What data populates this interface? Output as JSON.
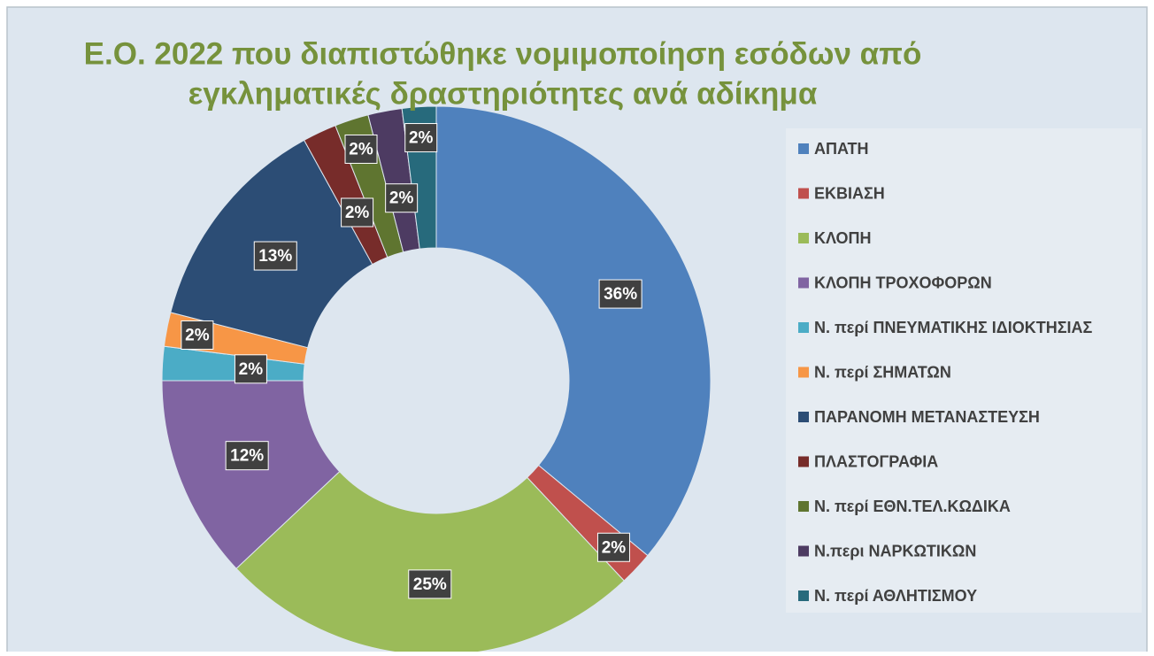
{
  "chart_data": {
    "type": "donut",
    "title": [
      "Ε.Ο. 2022 που διαπιστώθηκε νομιμοποίηση εσόδων από",
      "εγκληματικές δραστηριότητες ανά αδίκημα"
    ],
    "categories": [
      "ΑΠΑΤΗ",
      "ΕΚΒΙΑΣΗ",
      "ΚΛΟΠΗ",
      "ΚΛΟΠΗ ΤΡΟΧΟΦΟΡΩΝ",
      "Ν. περί ΠΝΕΥΜΑΤΙΚΗΣ ΙΔΙΟΚΤΗΣΙΑΣ",
      "Ν. περί ΣΗΜΑΤΩΝ",
      "ΠΑΡΑΝΟΜΗ ΜΕΤΑΝΑΣΤΕΥΣΗ",
      "ΠΛΑΣΤΟΓΡΑΦΙΑ",
      "Ν. περί ΕΘΝ.ΤΕΛ.ΚΩΔΙΚΑ",
      "Ν.περι ΝΑΡΚΩΤΙΚΩΝ",
      "Ν. περί ΑΘΛΗΤΙΣΜΟΥ"
    ],
    "values": [
      36,
      2,
      25,
      12,
      2,
      2,
      13,
      2,
      2,
      2,
      2
    ],
    "value_labels": [
      "36%",
      "2%",
      "25%",
      "12%",
      "2%",
      "2%",
      "13%",
      "2%",
      "2%",
      "2%",
      "2%"
    ],
    "colors": [
      "#4f81bd",
      "#c0504d",
      "#9bbb59",
      "#8064a2",
      "#4bacc6",
      "#f79646",
      "#2c4d75",
      "#772c2a",
      "#5f7530",
      "#4d3b62",
      "#276a7c"
    ],
    "legend": "right"
  }
}
